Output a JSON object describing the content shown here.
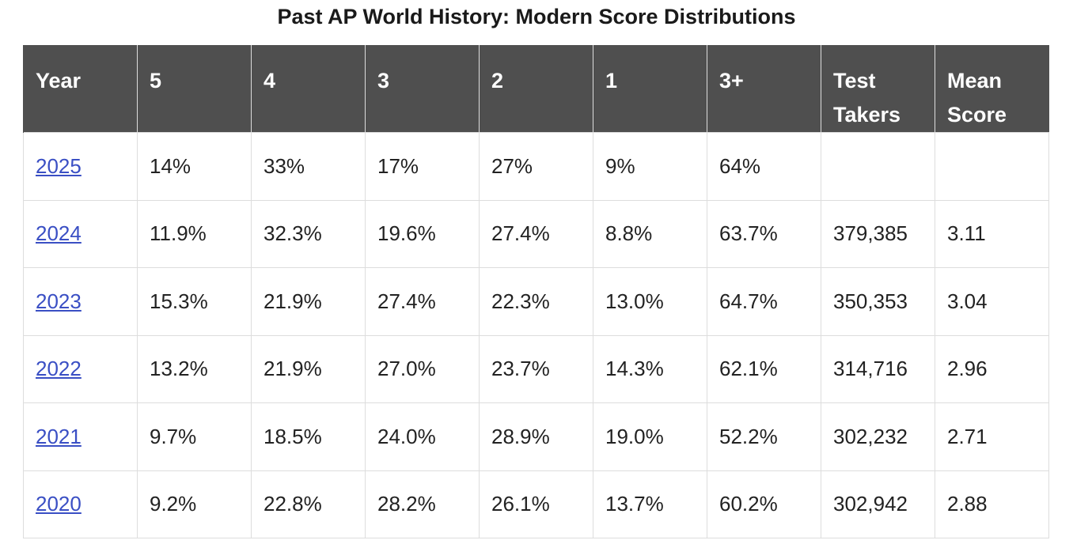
{
  "title": "Past AP World History: Modern Score Distributions",
  "headers": [
    "Year",
    "5",
    "4",
    "3",
    "2",
    "1",
    "3+",
    "Test Takers",
    "Mean Score"
  ],
  "rows": [
    [
      "2025",
      "14%",
      "33%",
      "17%",
      "27%",
      "9%",
      "64%",
      "",
      ""
    ],
    [
      "2024",
      "11.9%",
      "32.3%",
      "19.6%",
      "27.4%",
      "8.8%",
      "63.7%",
      "379,385",
      "3.11"
    ],
    [
      "2023",
      "15.3%",
      "21.9%",
      "27.4%",
      "22.3%",
      "13.0%",
      "64.7%",
      "350,353",
      "3.04"
    ],
    [
      "2022",
      "13.2%",
      "21.9%",
      "27.0%",
      "23.7%",
      "14.3%",
      "62.1%",
      "314,716",
      "2.96"
    ],
    [
      "2021",
      "9.7%",
      "18.5%",
      "24.0%",
      "28.9%",
      "19.0%",
      "52.2%",
      "302,232",
      "2.71"
    ],
    [
      "2020",
      "9.2%",
      "22.8%",
      "28.2%",
      "26.1%",
      "13.7%",
      "60.2%",
      "302,942",
      "2.88"
    ]
  ],
  "colors": {
    "header_bg": "#4f4f4f",
    "link": "#3a4fc4",
    "border": "#dddddd"
  }
}
